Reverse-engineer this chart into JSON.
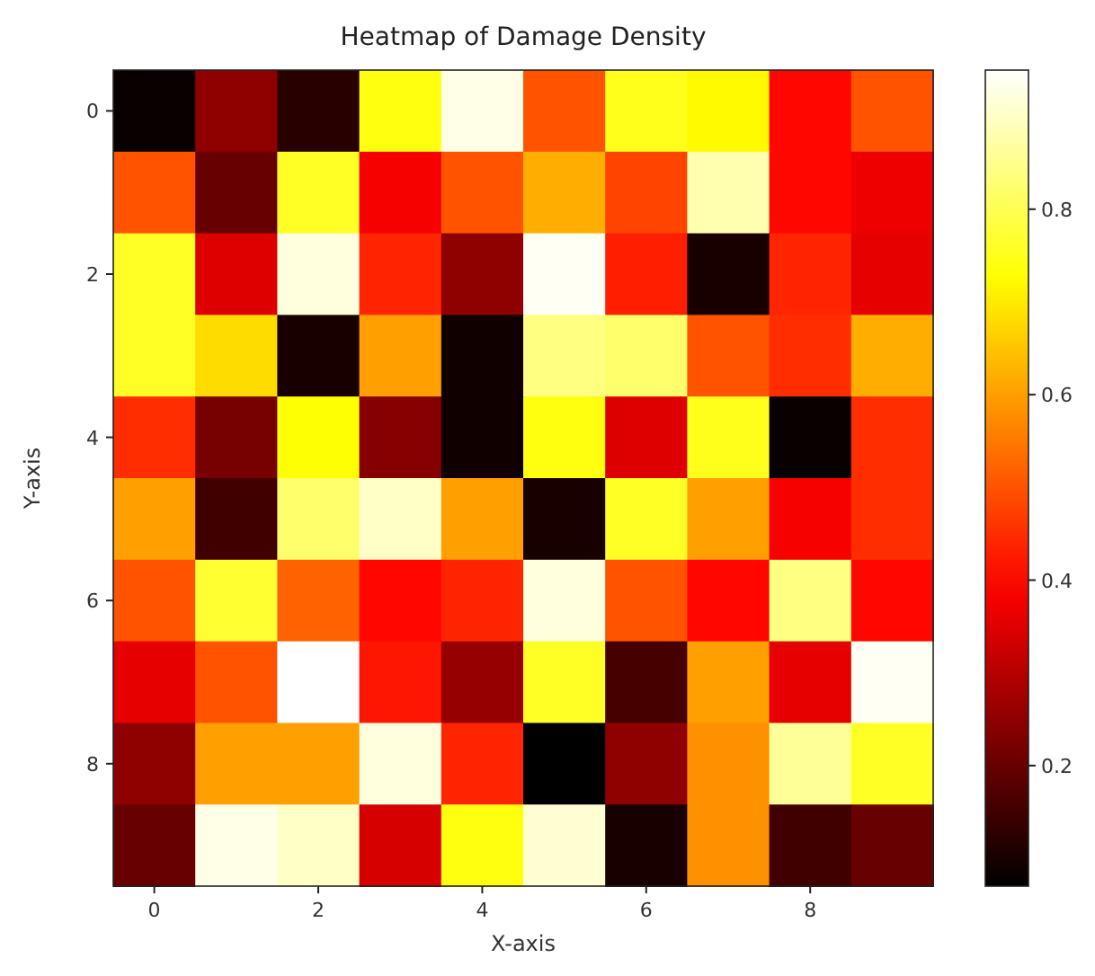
{
  "chart_data": {
    "type": "heatmap",
    "title": "Heatmap of Damage Density",
    "xlabel": "X-axis",
    "ylabel": "Y-axis",
    "categories": [
      "0",
      null,
      "2",
      null,
      "4",
      null,
      "6",
      null,
      "8",
      null
    ],
    "y_categories": [
      "0",
      null,
      "2",
      null,
      "4",
      null,
      "6",
      null,
      "8",
      null
    ],
    "cells": [
      [
        0.08,
        0.25,
        0.12,
        0.74,
        0.93,
        0.5,
        0.75,
        0.72,
        0.4,
        0.5
      ],
      [
        0.5,
        0.2,
        0.76,
        0.38,
        0.5,
        0.62,
        0.48,
        0.88,
        0.4,
        0.37
      ],
      [
        0.76,
        0.35,
        0.92,
        0.44,
        0.25,
        0.94,
        0.43,
        0.1,
        0.44,
        0.36
      ],
      [
        0.76,
        0.68,
        0.1,
        0.6,
        0.09,
        0.84,
        0.82,
        0.5,
        0.45,
        0.62
      ],
      [
        0.45,
        0.22,
        0.73,
        0.24,
        0.09,
        0.74,
        0.35,
        0.75,
        0.08,
        0.45
      ],
      [
        0.6,
        0.15,
        0.82,
        0.9,
        0.6,
        0.1,
        0.76,
        0.6,
        0.38,
        0.45
      ],
      [
        0.5,
        0.77,
        0.52,
        0.4,
        0.44,
        0.92,
        0.5,
        0.4,
        0.84,
        0.4
      ],
      [
        0.36,
        0.5,
        0.95,
        0.42,
        0.26,
        0.76,
        0.16,
        0.6,
        0.36,
        0.94
      ],
      [
        0.25,
        0.6,
        0.6,
        0.92,
        0.44,
        0.07,
        0.25,
        0.58,
        0.86,
        0.76
      ],
      [
        0.2,
        0.93,
        0.9,
        0.34,
        0.74,
        0.91,
        0.1,
        0.58,
        0.15,
        0.2
      ]
    ],
    "clim": [
      0.07,
      0.95
    ],
    "cticks": [
      0.2,
      0.4,
      0.6,
      0.8
    ]
  }
}
